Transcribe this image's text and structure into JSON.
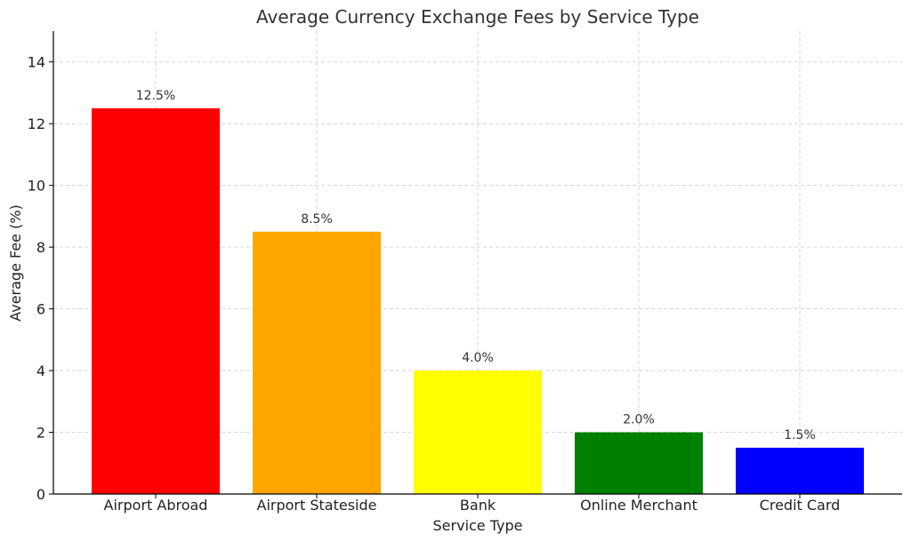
{
  "chart_data": {
    "type": "bar",
    "title": "Average Currency Exchange Fees by Service Type",
    "xlabel": "Service Type",
    "ylabel": "Average Fee (%)",
    "categories": [
      "Airport Abroad",
      "Airport Stateside",
      "Bank",
      "Online Merchant",
      "Credit Card"
    ],
    "values": [
      12.5,
      8.5,
      4.0,
      2.0,
      1.5
    ],
    "value_labels": [
      "12.5%",
      "8.5%",
      "4.0%",
      "2.0%",
      "1.5%"
    ],
    "colors": [
      "#ff0000",
      "#ffa500",
      "#ffff00",
      "#008000",
      "#0000ff"
    ],
    "ylim": [
      0,
      15
    ],
    "yticks": [
      0,
      2,
      4,
      6,
      8,
      10,
      12,
      14
    ],
    "ytick_labels": [
      "0",
      "2",
      "4",
      "6",
      "8",
      "10",
      "12",
      "14"
    ],
    "grid": true
  }
}
